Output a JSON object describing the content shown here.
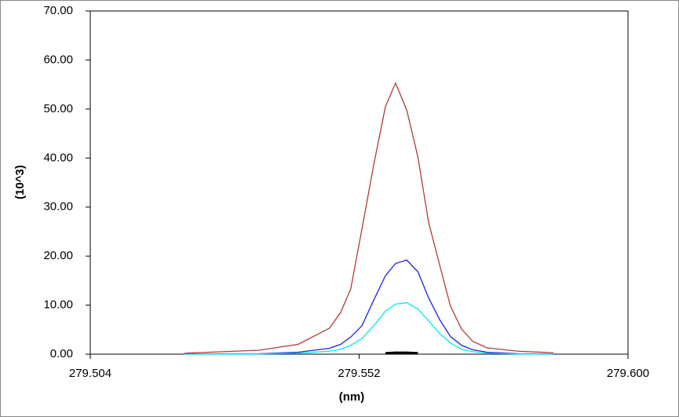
{
  "chart_data": {
    "type": "line",
    "x_label": "(nm)",
    "y_label": "(10^3)",
    "x": [
      279.5208,
      279.5341,
      279.5411,
      279.5467,
      279.5487,
      279.5505,
      279.5525,
      279.5546,
      279.5567,
      279.5585,
      279.5605,
      279.5625,
      279.5644,
      279.5664,
      279.5683,
      279.5703,
      279.5723,
      279.5748,
      279.5804,
      279.5867
    ],
    "series": [
      {
        "color": "#b23a3a",
        "values": [
          0.2,
          0.8,
          2,
          5.3,
          8.5,
          13.3,
          25.5,
          38.6,
          50.5,
          55.3,
          49.8,
          40.2,
          26.9,
          18.1,
          9.8,
          5.1,
          2.6,
          1.3,
          0.6,
          0.3
        ]
      },
      {
        "color": "#1e1ee6",
        "values": [
          0.05,
          0.1,
          0.4,
          1.2,
          2,
          3.5,
          5.8,
          11,
          16,
          18.5,
          19.2,
          16.8,
          11.5,
          7,
          3.6,
          1.8,
          0.9,
          0.4,
          0.1,
          0.05
        ]
      },
      {
        "color": "#00e8f0",
        "values": [
          0,
          0.05,
          0.2,
          0.6,
          1,
          1.8,
          3.2,
          5.8,
          8.8,
          10.2,
          10.5,
          9.2,
          6.8,
          4.2,
          2.3,
          1,
          0.5,
          0.2,
          0.05,
          0
        ]
      },
      {
        "color": "#000000",
        "values": [
          null,
          null,
          null,
          null,
          null,
          null,
          null,
          null,
          0.2,
          0.3,
          0.3,
          0.2,
          null,
          null,
          null,
          null,
          null,
          null,
          null,
          null
        ]
      }
    ],
    "xlim": [
      279.504,
      279.6
    ],
    "xticks": [
      279.504,
      279.552,
      {
        "value": 279.6,
        "label": "279.600"
      }
    ],
    "ylim": [
      0,
      70
    ],
    "yticks": [
      {
        "value": 0,
        "label": "0.00"
      },
      {
        "value": 10,
        "label": "10.00"
      },
      {
        "value": 20,
        "label": "20.00"
      },
      {
        "value": 30,
        "label": "30.00"
      },
      {
        "value": 40,
        "label": "40.00"
      },
      {
        "value": 50,
        "label": "50.00"
      },
      {
        "value": 60,
        "label": "60.00"
      },
      {
        "value": 70,
        "label": "70.00"
      }
    ]
  }
}
